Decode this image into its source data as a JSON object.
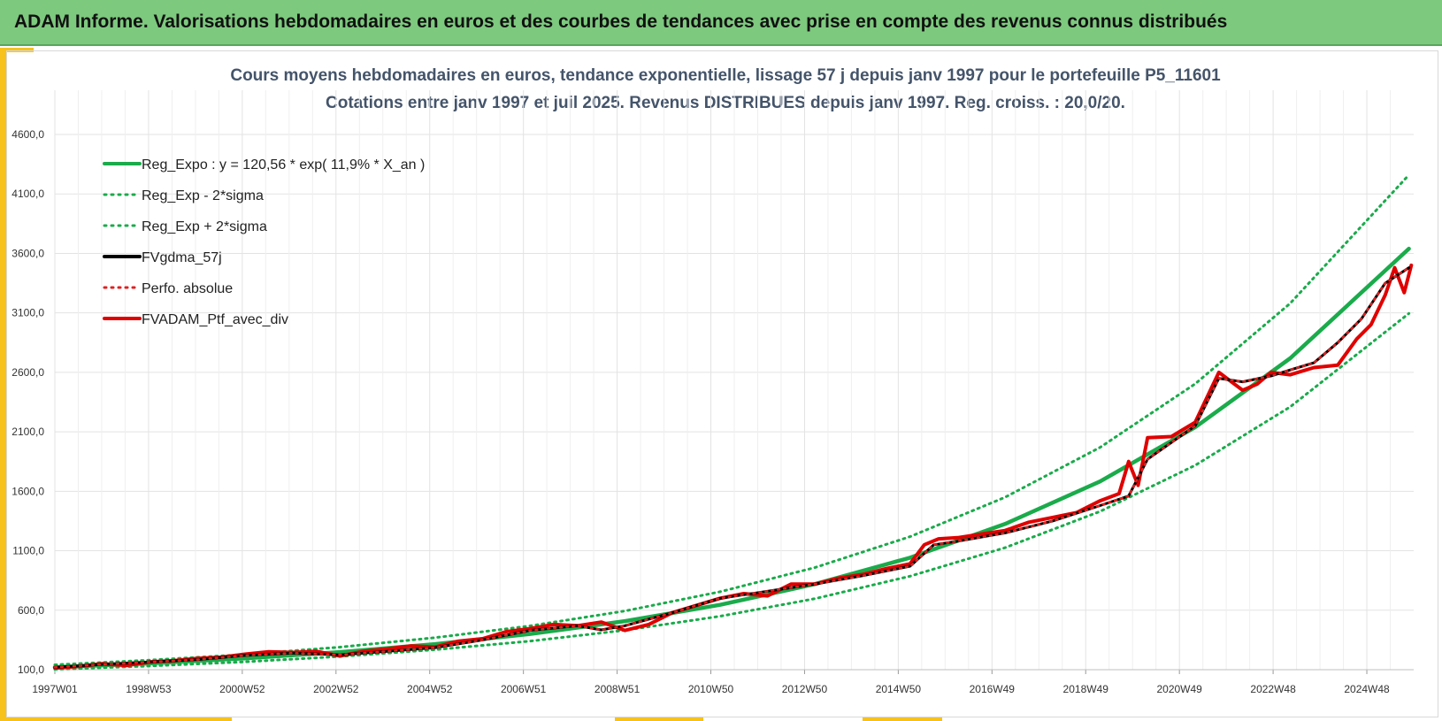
{
  "header": {
    "title": "ADAM Informe. Valorisations hebdomadaires en euros et des courbes de tendances avec prise en compte des revenus connus distribués"
  },
  "colors": {
    "header_bg": "#7dc97e",
    "accent": "#f6c21b",
    "reg_expo": "#1aab4b",
    "smooth": "#000000",
    "perfo": "#e02020",
    "portfolio": "#e00000"
  },
  "chart_data": {
    "type": "line",
    "title_line1": "Cours moyens hebdomadaires  en euros, tendance exponentielle, lissage 57 j depuis janv 1997 pour le portefeuille P5_11601",
    "title_line2": "Cotations entre janv 1997 et juil 2025. Revenus DISTRIBUES depuis janv 1997. Reg. croiss. : 20,0/20.",
    "ylim": [
      100,
      4600
    ],
    "y_ticks": [
      "100,0",
      "600,0",
      "1100,0",
      "1600,0",
      "2100,0",
      "2600,0",
      "3100,0",
      "3600,0",
      "4100,0",
      "4600,0"
    ],
    "x_ticks": [
      "1997W01",
      "1998W53",
      "2000W52",
      "2002W52",
      "2004W52",
      "2006W51",
      "2008W51",
      "2010W50",
      "2012W50",
      "2014W50",
      "2016W49",
      "2018W49",
      "2020W49",
      "2022W48",
      "2024W48"
    ],
    "grid": true,
    "legend_position": "top-left",
    "series": [
      {
        "name": "Reg_Expo : y = 120,56 * exp( 11,9% *  X_an )",
        "style": "solid",
        "color": "#1aab4b",
        "x": [
          1997.0,
          1999.0,
          2001.0,
          2003.0,
          2005.0,
          2007.0,
          2009.0,
          2011.0,
          2013.0,
          2015.0,
          2017.0,
          2019.0,
          2021.0,
          2023.0,
          2025.5
        ],
        "values": [
          121,
          153,
          195,
          248,
          315,
          400,
          508,
          645,
          820,
          1042,
          1325,
          1683,
          2139,
          2718,
          3640
        ]
      },
      {
        "name": "Reg_Exp - 2*sigma",
        "style": "dotted",
        "color": "#1aab4b",
        "x": [
          1997.0,
          1999.0,
          2001.0,
          2003.0,
          2005.0,
          2007.0,
          2009.0,
          2011.0,
          2013.0,
          2015.0,
          2017.0,
          2019.0,
          2021.0,
          2023.0,
          2025.5
        ],
        "values": [
          103,
          131,
          166,
          211,
          268,
          340,
          432,
          549,
          697,
          886,
          1126,
          1431,
          1818,
          2310,
          3095
        ]
      },
      {
        "name": "Reg_Exp + 2*sigma",
        "style": "dotted",
        "color": "#1aab4b",
        "x": [
          1997.0,
          1999.0,
          2001.0,
          2003.0,
          2005.0,
          2007.0,
          2009.0,
          2011.0,
          2013.0,
          2015.0,
          2017.0,
          2019.0,
          2021.0,
          2023.0,
          2025.5
        ],
        "values": [
          141,
          180,
          228,
          290,
          369,
          468,
          594,
          755,
          959,
          1219,
          1550,
          1969,
          2503,
          3180,
          4260
        ]
      },
      {
        "name": "FVgdma_57j",
        "style": "solid",
        "color": "#000000",
        "x": [
          1997.0,
          1998.0,
          1999.0,
          2000.0,
          2001.0,
          2002.0,
          2003.0,
          2004.0,
          2005.0,
          2006.0,
          2007.0,
          2008.0,
          2008.5,
          2009.0,
          2010.0,
          2011.0,
          2012.0,
          2013.0,
          2014.0,
          2015.0,
          2015.5,
          2016.0,
          2017.0,
          2018.0,
          2019.0,
          2019.6,
          2020.0,
          2021.0,
          2021.5,
          2022.0,
          2022.6,
          2023.0,
          2023.5,
          2024.0,
          2024.5,
          2025.0,
          2025.5
        ],
        "values": [
          120,
          145,
          165,
          185,
          220,
          240,
          225,
          255,
          285,
          350,
          430,
          470,
          435,
          470,
          580,
          700,
          760,
          820,
          890,
          970,
          1150,
          1180,
          1250,
          1350,
          1480,
          1560,
          1870,
          2150,
          2550,
          2520,
          2570,
          2620,
          2680,
          2850,
          3050,
          3350,
          3480
        ]
      },
      {
        "name": "Perfo. absolue",
        "style": "dotted",
        "color": "#e02020",
        "x": [
          1997.0,
          1998.0,
          1999.0,
          2000.0,
          2001.0,
          2002.0,
          2003.0,
          2004.0,
          2005.0,
          2006.0,
          2007.0,
          2008.0,
          2008.5,
          2009.0,
          2010.0,
          2011.0,
          2012.0,
          2013.0,
          2014.0,
          2015.0,
          2015.5,
          2016.0,
          2017.0,
          2018.0,
          2019.0,
          2019.6,
          2020.0,
          2021.0,
          2021.5,
          2022.0,
          2022.6,
          2023.0,
          2023.5,
          2024.0,
          2024.5,
          2025.0,
          2025.5
        ],
        "values": [
          120,
          145,
          165,
          185,
          220,
          240,
          225,
          255,
          285,
          350,
          430,
          470,
          435,
          470,
          580,
          700,
          760,
          820,
          890,
          970,
          1150,
          1180,
          1250,
          1350,
          1480,
          1560,
          1870,
          2150,
          2550,
          2520,
          2570,
          2620,
          2680,
          2850,
          3050,
          3350,
          3480
        ]
      },
      {
        "name": "FVADAM_Ptf_avec_div",
        "style": "solid",
        "color": "#e00000",
        "x": [
          1997.0,
          1997.5,
          1998.0,
          1998.5,
          1999.0,
          1999.5,
          2000.0,
          2000.5,
          2001.0,
          2001.5,
          2002.0,
          2002.5,
          2003.0,
          2003.5,
          2004.0,
          2004.5,
          2005.0,
          2005.5,
          2006.0,
          2006.5,
          2007.0,
          2007.5,
          2008.0,
          2008.5,
          2009.0,
          2009.5,
          2010.0,
          2010.5,
          2011.0,
          2011.5,
          2012.0,
          2012.5,
          2013.0,
          2013.5,
          2014.0,
          2014.5,
          2015.0,
          2015.3,
          2015.6,
          2016.0,
          2016.5,
          2017.0,
          2017.5,
          2018.0,
          2018.5,
          2019.0,
          2019.4,
          2019.6,
          2019.8,
          2020.0,
          2020.5,
          2021.0,
          2021.5,
          2022.0,
          2022.3,
          2022.6,
          2023.0,
          2023.5,
          2024.0,
          2024.4,
          2024.7,
          2025.0,
          2025.2,
          2025.4,
          2025.55
        ],
        "values": [
          115,
          128,
          150,
          135,
          165,
          175,
          195,
          205,
          230,
          250,
          245,
          255,
          215,
          255,
          275,
          300,
          290,
          340,
          360,
          420,
          445,
          480,
          470,
          500,
          430,
          480,
          580,
          640,
          700,
          740,
          720,
          820,
          820,
          870,
          900,
          950,
          990,
          1150,
          1200,
          1210,
          1240,
          1270,
          1340,
          1380,
          1420,
          1520,
          1580,
          1850,
          1650,
          2050,
          2060,
          2180,
          2600,
          2450,
          2500,
          2600,
          2580,
          2640,
          2660,
          2880,
          3000,
          3250,
          3480,
          3270,
          3500
        ]
      }
    ]
  }
}
